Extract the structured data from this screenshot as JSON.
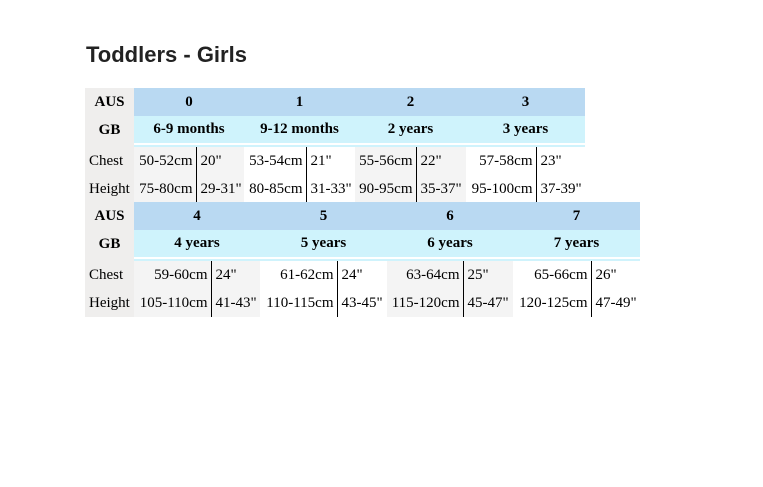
{
  "title": "Toddlers - Girls",
  "labels": {
    "aus": "AUS",
    "gb": "GB",
    "chest": "Chest",
    "height": "Height"
  },
  "tables": [
    {
      "sizes": [
        {
          "aus": "0",
          "gb": "6-9 months",
          "chest_cm": "50-52cm",
          "chest_in": "20\"",
          "height_cm": "75-80cm",
          "height_in": "29-31\""
        },
        {
          "aus": "1",
          "gb": "9-12 months",
          "chest_cm": "53-54cm",
          "chest_in": "21\"",
          "height_cm": "80-85cm",
          "height_in": "31-33\""
        },
        {
          "aus": "2",
          "gb": "2 years",
          "chest_cm": "55-56cm",
          "chest_in": "22\"",
          "height_cm": "90-95cm",
          "height_in": "35-37\""
        },
        {
          "aus": "3",
          "gb": "3 years",
          "chest_cm": "57-58cm",
          "chest_in": "23\"",
          "height_cm": "95-100cm",
          "height_in": "37-39\""
        }
      ]
    },
    {
      "sizes": [
        {
          "aus": "4",
          "gb": "4 years",
          "chest_cm": "59-60cm",
          "chest_in": "24\"",
          "height_cm": "105-110cm",
          "height_in": "41-43\""
        },
        {
          "aus": "5",
          "gb": "5 years",
          "chest_cm": "61-62cm",
          "chest_in": "24\"",
          "height_cm": "110-115cm",
          "height_in": "43-45\""
        },
        {
          "aus": "6",
          "gb": "6 years",
          "chest_cm": "63-64cm",
          "chest_in": "25\"",
          "height_cm": "115-120cm",
          "height_in": "45-47\""
        },
        {
          "aus": "7",
          "gb": "7 years",
          "chest_cm": "65-66cm",
          "chest_in": "26\"",
          "height_cm": "120-125cm",
          "height_in": "47-49\""
        }
      ]
    }
  ]
}
